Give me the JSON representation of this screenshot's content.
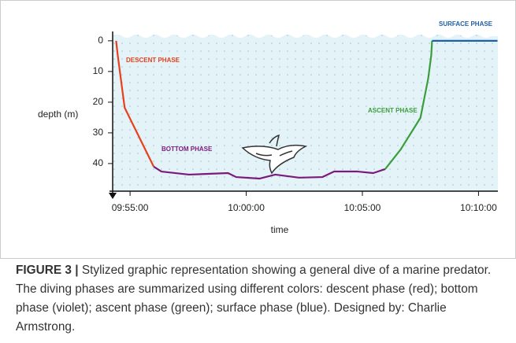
{
  "chart_data": {
    "type": "line",
    "ylabel": "depth (m)",
    "xlabel": "time",
    "ylim": [
      -1.5,
      49
    ],
    "yticks": [
      0,
      10,
      20,
      30,
      40
    ],
    "y_inverted": true,
    "xlim": [
      35655,
      36650
    ],
    "xticks": [
      {
        "value": 35700,
        "label": "09:55:00"
      },
      {
        "value": 36000,
        "label": "10:00:00"
      },
      {
        "value": 36300,
        "label": "10:05:00"
      },
      {
        "value": 36600,
        "label": "10:10:00"
      }
    ],
    "series": [
      {
        "name": "DESCENT PHASE",
        "color": "#e8401c",
        "x": [
          35664,
          35668,
          35686,
          35761
        ],
        "values": [
          0,
          4.6,
          21.8,
          41
        ]
      },
      {
        "name": "BOTTOM PHASE",
        "color": "#7b1a7a",
        "x": [
          35761,
          35781,
          35852,
          35953,
          35974,
          36034,
          36075,
          36136,
          36197,
          36227,
          36288,
          36328,
          36359
        ],
        "values": [
          41,
          42.6,
          43.6,
          43.1,
          44.4,
          44.9,
          43.6,
          44.6,
          44.4,
          42.6,
          42.6,
          43.1,
          41.8
        ]
      },
      {
        "name": "ASCENT PHASE",
        "color": "#3a9e3a",
        "x": [
          36359,
          36399,
          36450,
          36470,
          36478,
          36480
        ],
        "values": [
          41.8,
          35.4,
          25.1,
          12.3,
          4.6,
          0
        ]
      },
      {
        "name": "SURFACE PHASE",
        "color": "#1f5fa8",
        "x": [
          36480,
          36649
        ],
        "values": [
          0,
          0
        ]
      }
    ]
  },
  "caption": {
    "label": "FIGURE 3 |",
    "text": "Stylized graphic representation showing a general dive of a marine predator. The diving phases are summarized using different colors: descent phase (red); bottom phase (violet); ascent phase (green); surface phase (blue). Designed by: Charlie Armstrong."
  }
}
